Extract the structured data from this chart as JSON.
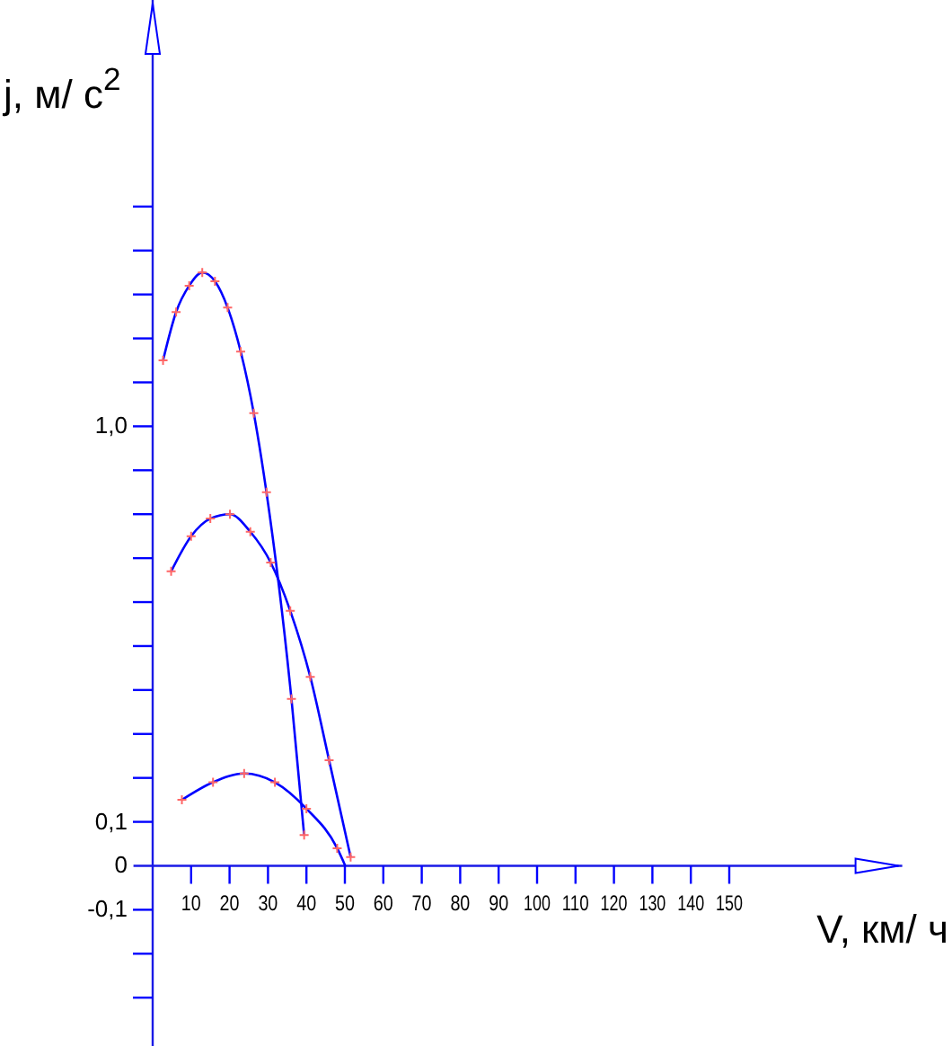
{
  "chart_data": {
    "type": "line",
    "xlabel": "V, км/ ч",
    "ylabel": "j, м/ с$^{2}$",
    "xlim": [
      -5,
      195
    ],
    "ylim": [
      -0.41,
      1.97
    ],
    "xticks": [
      10,
      20,
      30,
      40,
      50,
      60,
      70,
      80,
      90,
      100,
      110,
      120,
      130,
      140,
      150
    ],
    "yticks": [
      {
        "value": -0.3,
        "label": null
      },
      {
        "value": -0.2,
        "label": null
      },
      {
        "value": -0.1,
        "label": "-0,1"
      },
      {
        "value": 0,
        "label": "0"
      },
      {
        "value": 0.1,
        "label": "0,1"
      },
      {
        "value": 0.2,
        "label": null
      },
      {
        "value": 0.3,
        "label": null
      },
      {
        "value": 0.4,
        "label": null
      },
      {
        "value": 0.5,
        "label": null
      },
      {
        "value": 0.6,
        "label": null
      },
      {
        "value": 0.7,
        "label": null
      },
      {
        "value": 0.8,
        "label": null
      },
      {
        "value": 0.9,
        "label": null
      },
      {
        "value": 1.0,
        "label": "1,0"
      },
      {
        "value": 1.1,
        "label": null
      },
      {
        "value": 1.2,
        "label": null
      },
      {
        "value": 1.3,
        "label": null
      },
      {
        "value": 1.4,
        "label": null
      },
      {
        "value": 1.5,
        "label": null
      }
    ],
    "grid": false,
    "line_style": "solid",
    "marker": "none",
    "series": [
      {
        "color": "#0000ff",
        "x": [
          2.7,
          6.1,
          9.5,
          12.9,
          16.2,
          19.5,
          22.9,
          26.3,
          29.6,
          36.1,
          39.4
        ],
        "values": [
          1.15,
          1.26,
          1.32,
          1.35,
          1.33,
          1.27,
          1.17,
          1.03,
          0.85,
          0.38,
          0.07
        ]
      },
      {
        "color": "#0000ff",
        "x": [
          4.8,
          10.0,
          15.0,
          20.1,
          25.4,
          30.7,
          35.8,
          41.0,
          45.9,
          51.5
        ],
        "values": [
          0.67,
          0.75,
          0.79,
          0.8,
          0.76,
          0.69,
          0.58,
          0.43,
          0.24,
          0.02
        ]
      },
      {
        "color": "#0000ff",
        "x": [
          7.6,
          15.7,
          23.8,
          31.8,
          40.0,
          48.0,
          50.1
        ],
        "values": [
          0.15,
          0.19,
          0.21,
          0.19,
          0.13,
          0.04,
          0
        ]
      },
      {
        "type": "scatter",
        "color": "#ff6666",
        "marker": "cross",
        "x": [
          2.7,
          6.1,
          9.5,
          12.9,
          16.2,
          19.5,
          22.9,
          26.3,
          29.6,
          36.1,
          39.4
        ],
        "values": [
          1.15,
          1.26,
          1.32,
          1.35,
          1.33,
          1.27,
          1.17,
          1.03,
          0.85,
          0.38,
          0.07
        ]
      },
      {
        "type": "scatter",
        "color": "#ff6666",
        "marker": "cross",
        "x": [
          4.8,
          10.0,
          15.0,
          20.1,
          25.4,
          30.7,
          35.8,
          41.0,
          45.9,
          51.5
        ],
        "values": [
          0.67,
          0.75,
          0.79,
          0.8,
          0.76,
          0.69,
          0.58,
          0.43,
          0.24,
          0.02
        ]
      },
      {
        "type": "scatter",
        "color": "#ff6666",
        "marker": "cross",
        "x": [
          7.6,
          15.7,
          23.8,
          31.8,
          40.0,
          48.0
        ],
        "values": [
          0.15,
          0.19,
          0.21,
          0.19,
          0.13,
          0.04
        ]
      }
    ]
  }
}
